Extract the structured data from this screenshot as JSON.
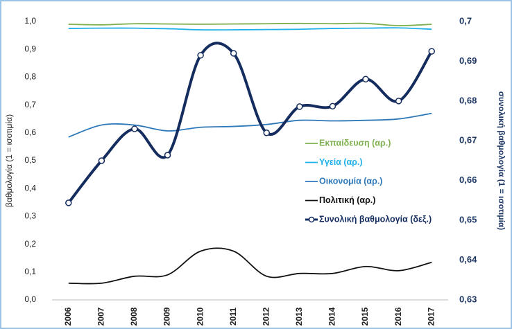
{
  "chart_data": {
    "type": "line",
    "categories": [
      "2006",
      "2007",
      "2008",
      "2009",
      "2010",
      "2011",
      "2012",
      "2013",
      "2014",
      "2015",
      "2016",
      "2017"
    ],
    "ylabel": "βαθμολογία (1 = ισοτιμία)",
    "y2label": "συνολική βαθμολογία (1 = ισοτιμία)",
    "ylim": [
      0,
      1
    ],
    "yticks": [
      {
        "value": 0,
        "label": "0,0"
      },
      {
        "value": 0.1,
        "label": "0,1"
      },
      {
        "value": 0.2,
        "label": "0,2"
      },
      {
        "value": 0.3,
        "label": "0,3"
      },
      {
        "value": 0.4,
        "label": "0,4"
      },
      {
        "value": 0.5,
        "label": "0,5"
      },
      {
        "value": 0.6,
        "label": "0,6"
      },
      {
        "value": 0.7,
        "label": "0,7"
      },
      {
        "value": 0.8,
        "label": "0,8"
      },
      {
        "value": 0.9,
        "label": "0,9"
      },
      {
        "value": 1,
        "label": "1,0"
      }
    ],
    "y2lim": [
      0.63,
      0.7
    ],
    "y2ticks": [
      {
        "value": 0.63,
        "label": "0,63"
      },
      {
        "value": 0.64,
        "label": "0,64"
      },
      {
        "value": 0.65,
        "label": "0,65"
      },
      {
        "value": 0.66,
        "label": "0,66"
      },
      {
        "value": 0.67,
        "label": "0,67"
      },
      {
        "value": 0.68,
        "label": "0,68"
      },
      {
        "value": 0.69,
        "label": "0,69"
      },
      {
        "value": 0.7,
        "label": "0,7"
      }
    ],
    "smooth": true,
    "series": [
      {
        "name": "Εκπαίδευση (αρ.)",
        "color": "#7fb04f",
        "values": [
          0.99,
          0.988,
          0.992,
          0.991,
          0.99,
          0.991,
          0.992,
          0.993,
          0.992,
          0.993,
          0.985,
          0.99
        ]
      },
      {
        "name": "Υγεία (αρ.)",
        "color": "#1fb0ea",
        "values": [
          0.975,
          0.976,
          0.976,
          0.974,
          0.97,
          0.97,
          0.971,
          0.972,
          0.975,
          0.976,
          0.977,
          0.972
        ]
      },
      {
        "name": "Οικονομία (αρ.)",
        "color": "#2e78b8",
        "values": [
          0.585,
          0.628,
          0.628,
          0.607,
          0.62,
          0.623,
          0.63,
          0.645,
          0.643,
          0.645,
          0.65,
          0.67
        ]
      },
      {
        "name": "Πολιτική (αρ.)",
        "color": "#111111",
        "values": [
          0.06,
          0.06,
          0.085,
          0.09,
          0.175,
          0.175,
          0.085,
          0.095,
          0.095,
          0.12,
          0.105,
          0.135
        ]
      },
      {
        "name": "Συνολική βαθμολογία (δεξ.)",
        "color": "#142c5e",
        "axis": "y2",
        "marker": true,
        "values": [
          0.6544,
          0.665,
          0.673,
          0.6664,
          0.6915,
          0.692,
          0.672,
          0.6786,
          0.6787,
          0.6855,
          0.68,
          0.6925
        ]
      }
    ]
  }
}
